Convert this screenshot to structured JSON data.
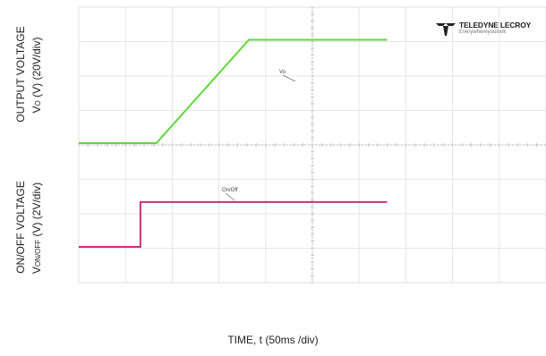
{
  "chart_data": {
    "type": "line",
    "title": "",
    "xlabel": "TIME, t (50ms /div)",
    "x_per_div_ms": 50,
    "grid": true,
    "logo": {
      "name": "TELEDYNE LECROY",
      "tagline": "Everywhereyoulook"
    },
    "y_axes": [
      {
        "lines": [
          "OUTPUT VOLTAGE",
          "VO (V) (20V/div)"
        ],
        "parts": [
          "OUTPUT VOLTAGE",
          "V",
          "O",
          " (V) (20V/div)"
        ]
      },
      {
        "lines": [
          "ON/OFF VOLTAGE",
          "VON/OFF (V) (2V/div)"
        ],
        "parts": [
          "ON/OFF VOLTAGE",
          "V",
          "ON/OFF",
          " (V) (2V/div)"
        ]
      }
    ],
    "series": [
      {
        "name": "Vo",
        "color": "#5fd93a",
        "unit": "V",
        "points": [
          [
            0,
            0
          ],
          [
            83,
            0
          ],
          [
            182,
            60
          ],
          [
            330,
            60
          ]
        ]
      },
      {
        "name": "On/Off",
        "color": "#c8307a",
        "unit": "V",
        "points": [
          [
            0,
            0
          ],
          [
            66,
            0
          ],
          [
            66,
            2.6
          ],
          [
            330,
            2.6
          ]
        ]
      }
    ]
  }
}
